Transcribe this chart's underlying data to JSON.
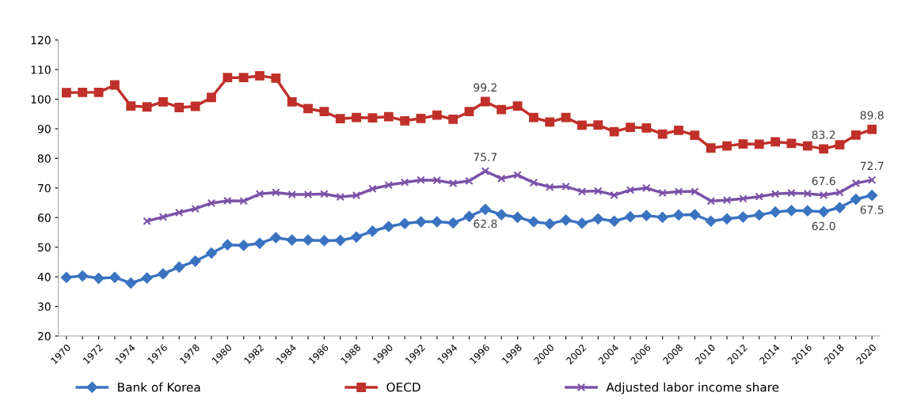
{
  "chart_data": {
    "type": "line",
    "categories": [
      "1970",
      null,
      "1972",
      null,
      "1974",
      null,
      "1976",
      null,
      "1978",
      null,
      "1980",
      null,
      "1982",
      null,
      "1984",
      null,
      "1986",
      null,
      "1988",
      null,
      "1990",
      null,
      "1992",
      null,
      "1994",
      null,
      "1996",
      null,
      "1998",
      null,
      "2000",
      null,
      "2002",
      null,
      "2004",
      null,
      "2006",
      null,
      "2008",
      null,
      "2010",
      null,
      "2012",
      null,
      "2014",
      null,
      "2016",
      null,
      "2018",
      null,
      "2020"
    ],
    "series": [
      {
        "name": "Bank of Korea",
        "color": "#3a73c0",
        "marker": "diamond",
        "values": [
          39.8,
          40.3,
          39.5,
          39.8,
          37.9,
          39.6,
          41.0,
          43.3,
          45.3,
          48.0,
          50.8,
          50.6,
          51.3,
          53.2,
          52.4,
          52.4,
          52.2,
          52.3,
          53.4,
          55.4,
          57.0,
          58.0,
          58.6,
          58.6,
          58.2,
          60.4,
          62.8,
          61.0,
          60.1,
          58.6,
          57.9,
          59.2,
          58.1,
          59.6,
          58.8,
          60.3,
          60.7,
          60.1,
          60.9,
          61.0,
          58.8,
          59.6,
          60.2,
          60.9,
          61.9,
          62.4,
          62.3,
          62.0,
          63.4,
          66.2,
          67.5
        ],
        "value_labels": [
          null,
          null,
          null,
          null,
          null,
          null,
          null,
          null,
          null,
          null,
          null,
          null,
          null,
          null,
          null,
          null,
          null,
          null,
          null,
          null,
          null,
          null,
          null,
          null,
          null,
          null,
          "62.8",
          null,
          null,
          null,
          null,
          null,
          null,
          null,
          null,
          null,
          null,
          null,
          null,
          null,
          null,
          null,
          null,
          null,
          null,
          null,
          null,
          "62.0",
          null,
          null,
          "67.5"
        ]
      },
      {
        "name": "OECD",
        "color": "#c0302a",
        "marker": "square",
        "values": [
          102.2,
          102.3,
          102.3,
          104.8,
          97.7,
          97.4,
          99.1,
          97.2,
          97.6,
          100.6,
          107.3,
          107.3,
          107.9,
          107.1,
          99.1,
          96.8,
          95.8,
          93.4,
          93.8,
          93.7,
          94.1,
          92.7,
          93.5,
          94.6,
          93.2,
          95.8,
          99.2,
          96.5,
          97.7,
          93.8,
          92.3,
          93.8,
          91.2,
          91.3,
          89.0,
          90.5,
          90.3,
          88.2,
          89.5,
          87.8,
          83.5,
          84.2,
          84.9,
          84.8,
          85.6,
          85.1,
          84.2,
          83.2,
          84.6,
          87.9,
          89.8
        ],
        "value_labels": [
          null,
          null,
          null,
          null,
          null,
          null,
          null,
          null,
          null,
          null,
          null,
          null,
          null,
          null,
          null,
          null,
          null,
          null,
          null,
          null,
          null,
          null,
          null,
          null,
          null,
          null,
          "99.2",
          null,
          null,
          null,
          null,
          null,
          null,
          null,
          null,
          null,
          null,
          null,
          null,
          null,
          null,
          null,
          null,
          null,
          null,
          null,
          null,
          "83.2",
          null,
          null,
          "89.8"
        ]
      },
      {
        "name": "Adjusted labor income share",
        "color": "#7b52a8",
        "marker": "cross",
        "values": [
          null,
          null,
          null,
          null,
          null,
          58.8,
          60.2,
          61.7,
          63.0,
          64.9,
          65.7,
          65.6,
          68.0,
          68.5,
          67.8,
          67.8,
          68.0,
          67.0,
          67.5,
          69.7,
          71.0,
          71.9,
          72.7,
          72.6,
          71.6,
          72.4,
          75.7,
          73.2,
          74.4,
          71.8,
          70.3,
          70.5,
          68.8,
          69.0,
          67.6,
          69.3,
          70.0,
          68.3,
          68.8,
          68.8,
          65.6,
          65.9,
          66.4,
          67.1,
          68.0,
          68.3,
          68.1,
          67.6,
          68.5,
          71.6,
          72.7
        ],
        "value_labels": [
          null,
          null,
          null,
          null,
          null,
          null,
          null,
          null,
          null,
          null,
          null,
          null,
          null,
          null,
          null,
          null,
          null,
          null,
          null,
          null,
          null,
          null,
          null,
          null,
          null,
          null,
          "75.7",
          null,
          null,
          null,
          null,
          null,
          null,
          null,
          null,
          null,
          null,
          null,
          null,
          null,
          null,
          null,
          null,
          null,
          null,
          null,
          null,
          "67.6",
          null,
          null,
          "72.7"
        ]
      }
    ],
    "ylim": [
      20,
      120
    ],
    "yticks": [
      20,
      30,
      40,
      50,
      60,
      70,
      80,
      90,
      100,
      110,
      120
    ],
    "grid": false,
    "legend": "bottom"
  }
}
